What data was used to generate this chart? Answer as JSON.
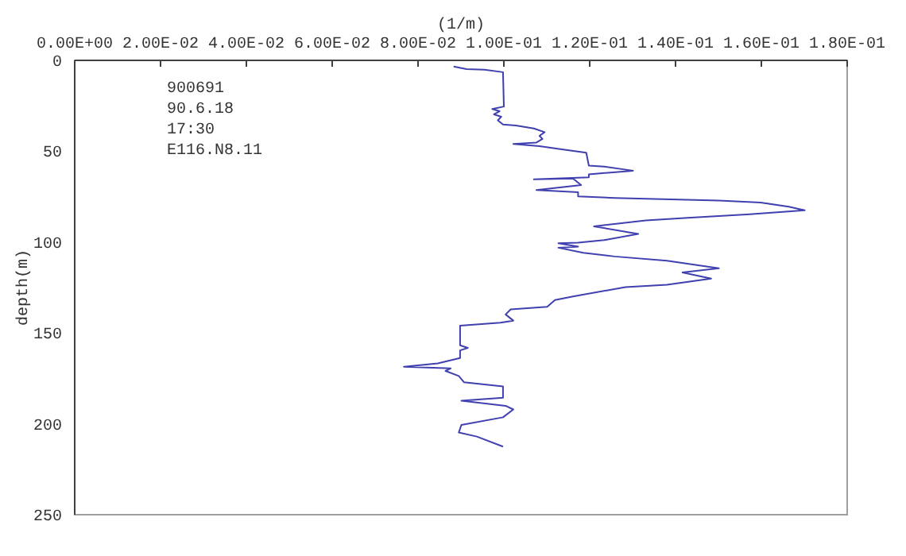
{
  "chart_data": {
    "type": "line",
    "xlabel": "(1/m)",
    "ylabel": "depth(m)",
    "annotations": [
      "900691",
      "90.6.18",
      "17:30",
      "E116.N8.11"
    ],
    "xlim": [
      0,
      0.18
    ],
    "xticks": [
      {
        "value": 0,
        "label": "0.00E+00"
      },
      {
        "value": 0.02,
        "label": "2.00E-02"
      },
      {
        "value": 0.04,
        "label": "4.00E-02"
      },
      {
        "value": 0.06,
        "label": "6.00E-02"
      },
      {
        "value": 0.08,
        "label": "8.00E-02"
      },
      {
        "value": 0.1,
        "label": "1.00E-01"
      },
      {
        "value": 0.12,
        "label": "1.20E-01"
      },
      {
        "value": 0.14,
        "label": "1.40E-01"
      },
      {
        "value": 0.16,
        "label": "1.60E-01"
      },
      {
        "value": 0.18,
        "label": "1.80E-01"
      }
    ],
    "ylim": [
      250,
      0
    ],
    "yticks": [
      0,
      50,
      100,
      150,
      200,
      250
    ],
    "grid": false,
    "series": [
      {
        "color": "#4040b0",
        "x": [
          0.0883,
          0.0913,
          0.0955,
          0.0998,
          0.1,
          0.0973,
          0.099,
          0.0977,
          0.0994,
          0.0986,
          0.0998,
          0.1028,
          0.107,
          0.1095,
          0.1083,
          0.109,
          0.1076,
          0.1022,
          0.1083,
          0.1125,
          0.1192,
          0.1198,
          0.1234,
          0.1301,
          0.1198,
          0.1198,
          0.107,
          0.1161,
          0.118,
          0.1076,
          0.1173,
          0.1173,
          0.1258,
          0.1501,
          0.1598,
          0.1664,
          0.1701,
          0.1573,
          0.1428,
          0.1331,
          0.121,
          0.1313,
          0.1234,
          0.1173,
          0.1127,
          0.1173,
          0.1127,
          0.1185,
          0.1258,
          0.138,
          0.1501,
          0.1416,
          0.1483,
          0.138,
          0.1283,
          0.1161,
          0.1119,
          0.1101,
          0.1016,
          0.1004,
          0.1022,
          0.0992,
          0.0898,
          0.0898,
          0.0916,
          0.0898,
          0.0898,
          0.0846,
          0.0767,
          0.0876,
          0.0864,
          0.0895,
          0.0907,
          0.0998,
          0.0998,
          0.0901,
          0.1004,
          0.1022,
          0.0998,
          0.0901,
          0.0895,
          0.0937,
          0.0998
        ],
        "values": [
          3.4,
          4.8,
          5.1,
          6.5,
          25.4,
          26.8,
          28,
          29.7,
          31,
          33,
          35.3,
          35.8,
          37.5,
          39.5,
          41.5,
          43.2,
          45.2,
          46,
          47.2,
          48.6,
          50.8,
          57.9,
          58.5,
          60.7,
          62.7,
          64.4,
          65.5,
          65,
          68.6,
          71.4,
          72.6,
          74.8,
          75.7,
          77.1,
          78.2,
          80.5,
          82.5,
          84.7,
          86.7,
          88.1,
          91.3,
          95.5,
          98.9,
          100.3,
          100.6,
          102.5,
          103.1,
          105.9,
          107.9,
          110.2,
          114.4,
          116.7,
          120.1,
          123.5,
          124.8,
          129.9,
          131.9,
          135.6,
          137,
          139.8,
          143.2,
          144.3,
          146,
          156.8,
          158.2,
          159.6,
          163.8,
          166.7,
          168.6,
          169.5,
          170.9,
          173.7,
          177.1,
          179.4,
          185.6,
          187.3,
          190.1,
          192.1,
          196.4,
          200.6,
          204.8,
          207,
          212.5
        ]
      }
    ]
  }
}
